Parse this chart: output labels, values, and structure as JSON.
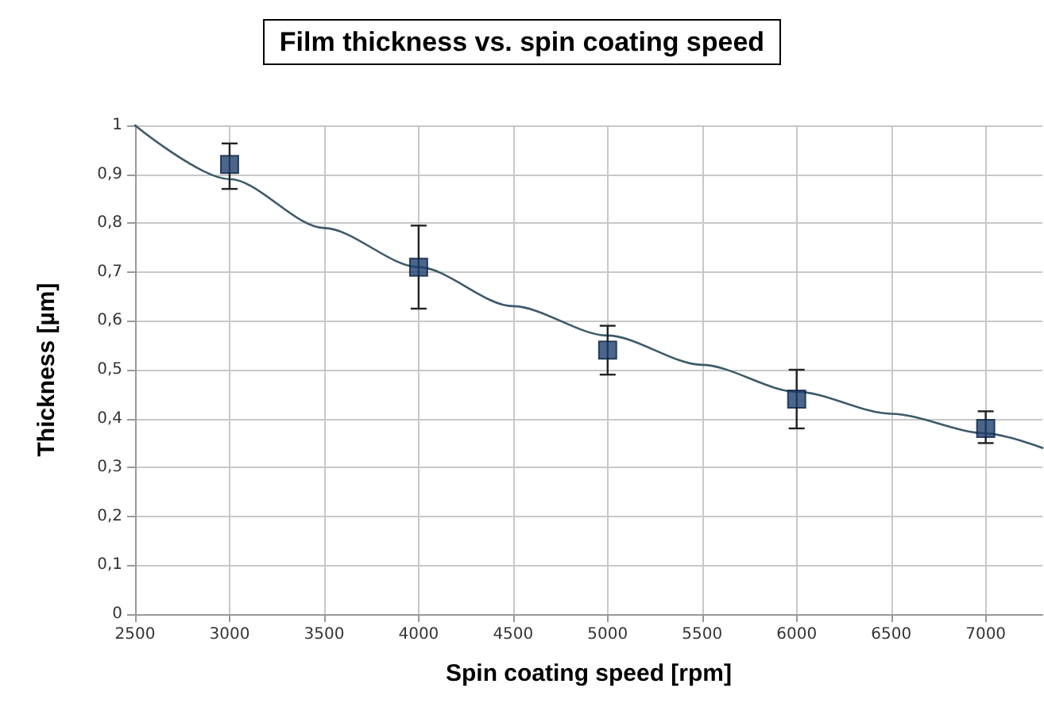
{
  "chart_data": {
    "type": "scatter",
    "title": "Film thickness vs. spin coating speed",
    "xlabel": "Spin coating speed [rpm]",
    "ylabel": "Thickness [µm]",
    "xlim": [
      2500,
      7300
    ],
    "xticks": [
      2500,
      3000,
      3500,
      4000,
      4500,
      5000,
      5500,
      6000,
      6500,
      7000
    ],
    "ylim": [
      0,
      1
    ],
    "yticks": [
      {
        "value": 0,
        "label": "0"
      },
      {
        "value": 0.1,
        "label": "0,1"
      },
      {
        "value": 0.2,
        "label": "0,2"
      },
      {
        "value": 0.3,
        "label": "0,3"
      },
      {
        "value": 0.4,
        "label": "0,4"
      },
      {
        "value": 0.5,
        "label": "0,5"
      },
      {
        "value": 0.6,
        "label": "0,6"
      },
      {
        "value": 0.7,
        "label": "0,7"
      },
      {
        "value": 0.8,
        "label": "0,8"
      },
      {
        "value": 0.9,
        "label": "0,9"
      },
      {
        "value": 1,
        "label": "1"
      }
    ],
    "grid": true,
    "marker": "square",
    "series": [
      {
        "color": "#1f3f6e",
        "x": [
          3000,
          4000,
          5000,
          6000,
          7000
        ],
        "values": [
          0.92,
          0.71,
          0.54,
          0.44,
          0.38
        ],
        "errors": [
          [
            0.87,
            0.963
          ],
          [
            0.625,
            0.795
          ],
          [
            0.49,
            0.59
          ],
          [
            0.38,
            0.5
          ],
          [
            0.35,
            0.415
          ]
        ]
      },
      {
        "type": "line",
        "color": "#3c5a6a",
        "marker": "none",
        "line_style": "solid",
        "x": [
          2500,
          3000,
          3500,
          4000,
          4500,
          5000,
          5500,
          6000,
          6500,
          7000,
          7300
        ],
        "values": [
          1.0,
          0.89,
          0.79,
          0.71,
          0.63,
          0.57,
          0.51,
          0.455,
          0.41,
          0.37,
          0.34
        ]
      }
    ]
  }
}
